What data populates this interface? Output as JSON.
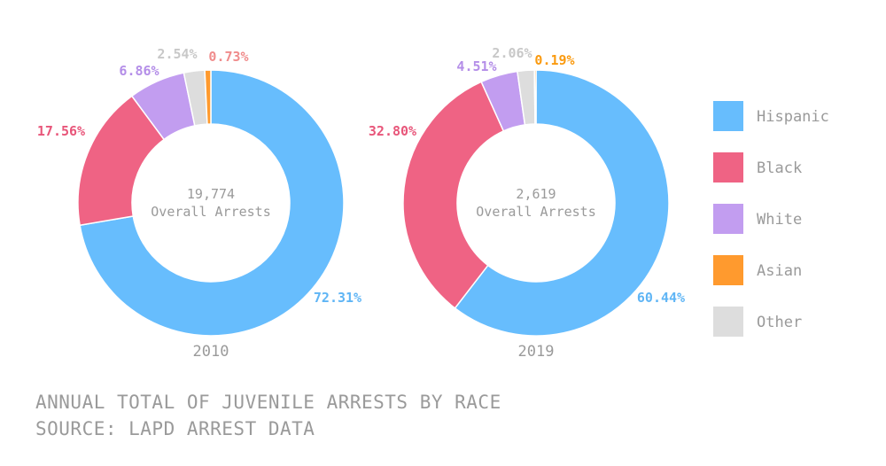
{
  "chart_data": [
    {
      "type": "pie",
      "year_label": "2010",
      "center_value": "19,774",
      "center_label": "Overall Arrests",
      "series": [
        {
          "name": "Hispanic",
          "value": 72.31,
          "label": "72.31%"
        },
        {
          "name": "Black",
          "value": 17.56,
          "label": "17.56%"
        },
        {
          "name": "White",
          "value": 6.86,
          "label": "6.86%"
        },
        {
          "name": "Other",
          "value": 2.54,
          "label": "2.54%"
        },
        {
          "name": "Asian",
          "value": 0.73,
          "label": "0.73%"
        }
      ]
    },
    {
      "type": "pie",
      "year_label": "2019",
      "center_value": "2,619",
      "center_label": "Overall Arrests",
      "series": [
        {
          "name": "Hispanic",
          "value": 60.44,
          "label": "60.44%"
        },
        {
          "name": "Black",
          "value": 32.8,
          "label": "32.80%"
        },
        {
          "name": "White",
          "value": 4.51,
          "label": "4.51%"
        },
        {
          "name": "Other",
          "value": 2.06,
          "label": "2.06%"
        },
        {
          "name": "Asian",
          "value": 0.19,
          "label": "0.19%"
        }
      ]
    }
  ],
  "legend": [
    {
      "name": "Hispanic",
      "color": "#67bdfd"
    },
    {
      "name": "Black",
      "color": "#ef6384"
    },
    {
      "name": "White",
      "color": "#c29df0"
    },
    {
      "name": "Asian",
      "color": "#ff9a2e"
    },
    {
      "name": "Other",
      "color": "#dddddd"
    }
  ],
  "label_colors": {
    "Hispanic": "#5fb5f5",
    "Black": "#e8567a",
    "White": "#b48ee8",
    "Asian": "#fa8d12",
    "Other": "#c8c8c8"
  },
  "asian_label_colors": [
    "#f08c8c",
    "#fa9a0f"
  ],
  "caption": {
    "line1": "ANNUAL TOTAL OF JUVENILE ARRESTS BY RACE",
    "line2": "SOURCE: LAPD ARREST DATA"
  },
  "text_color": "#9a9a9a"
}
